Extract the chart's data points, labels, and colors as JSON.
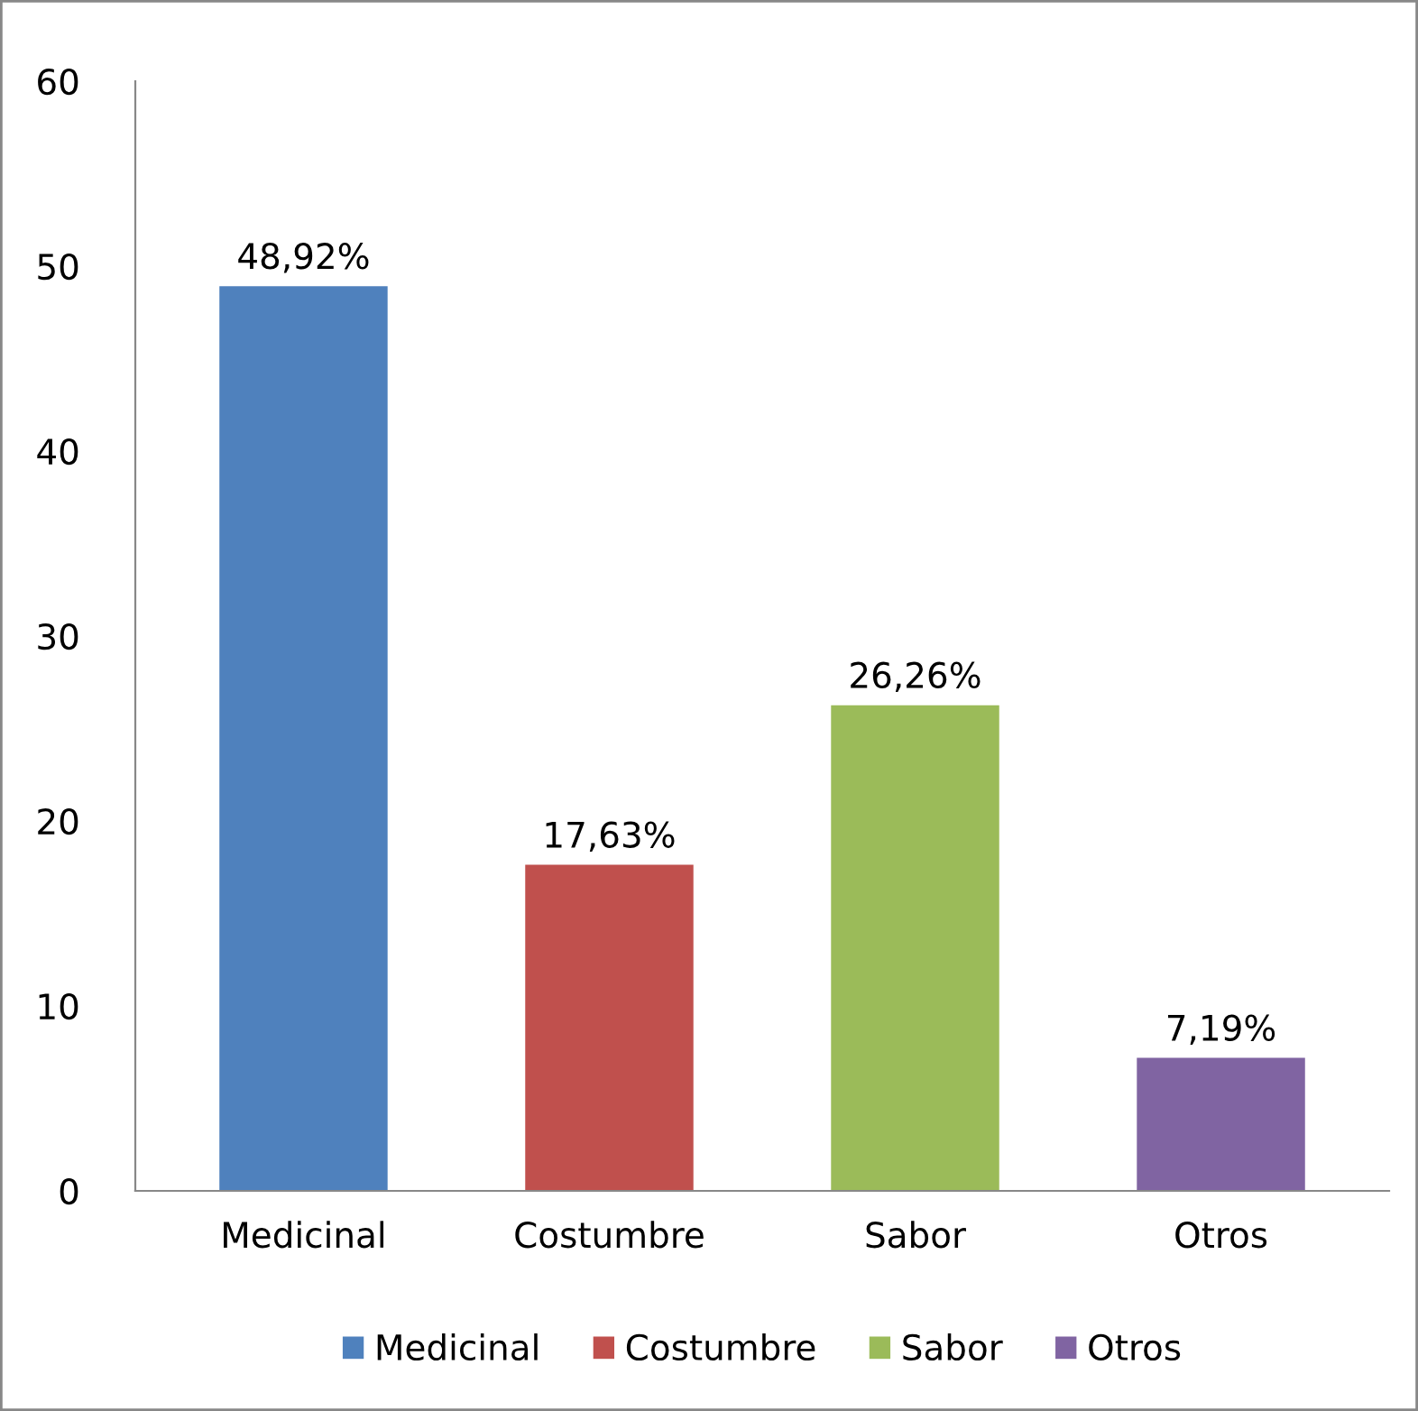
{
  "chart_data": {
    "type": "bar",
    "categories": [
      "Medicinal",
      "Costumbre",
      "Sabor",
      "Otros"
    ],
    "series": [
      {
        "name": "Medicinal",
        "color": "#4f81bd",
        "values": [
          48.92,
          null,
          null,
          null
        ],
        "value_labels": [
          "48,92%",
          null,
          null,
          null
        ]
      },
      {
        "name": "Costumbre",
        "color": "#c0504d",
        "values": [
          null,
          17.63,
          null,
          null
        ],
        "value_labels": [
          null,
          "17,63%",
          null,
          null
        ]
      },
      {
        "name": "Sabor",
        "color": "#9bbb59",
        "values": [
          null,
          null,
          26.26,
          null
        ],
        "value_labels": [
          null,
          null,
          "26,26%",
          null
        ]
      },
      {
        "name": "Otros",
        "color": "#8064a2",
        "values": [
          null,
          null,
          null,
          7.19
        ],
        "value_labels": [
          null,
          null,
          null,
          "7,19%"
        ]
      }
    ],
    "ylim": [
      0,
      60
    ],
    "yticks": [
      0,
      10,
      20,
      30,
      40,
      50,
      60
    ],
    "grid": false,
    "legend": "bottom"
  }
}
